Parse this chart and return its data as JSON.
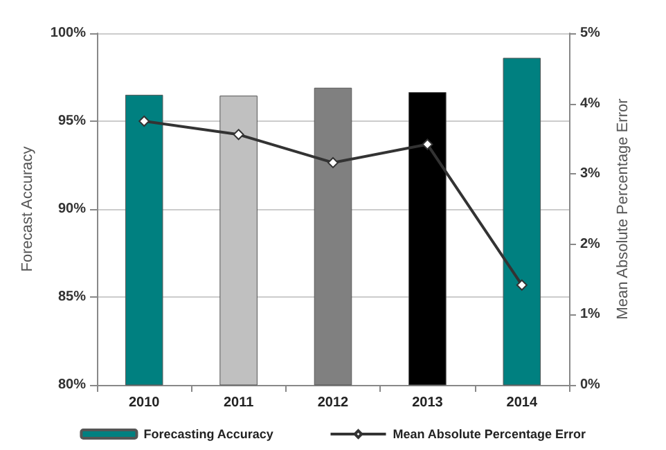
{
  "chart_data": {
    "type": "bar",
    "categories": [
      "2010",
      "2011",
      "2012",
      "2013",
      "2014"
    ],
    "ylabel": "Forecast Accuracy",
    "y2label": "Mean Absolute Percentage Error",
    "series": [
      {
        "name": "Forecasting Accuracy",
        "colors": [
          "#008080",
          "#c0c0c0",
          "#808080",
          "#000000",
          "#008080"
        ],
        "values": [
          96.5,
          96.45,
          96.9,
          96.65,
          98.6
        ]
      },
      {
        "name": "Mean Absolute Percentage Error",
        "type": "line",
        "axis": "y2",
        "color": "#333333",
        "marker": "diamond",
        "values": [
          3.75,
          3.56,
          3.16,
          3.42,
          1.42
        ]
      }
    ],
    "ylim": [
      80,
      100
    ],
    "yticks": [
      {
        "value": 80,
        "label": "80%"
      },
      {
        "value": 85,
        "label": "85%"
      },
      {
        "value": 90,
        "label": "90%"
      },
      {
        "value": 95,
        "label": "95%"
      },
      {
        "value": 100,
        "label": "100%"
      }
    ],
    "y2lim": [
      0,
      5
    ],
    "y2ticks": [
      {
        "value": 0,
        "label": "0%"
      },
      {
        "value": 1,
        "label": "1%"
      },
      {
        "value": 2,
        "label": "2%"
      },
      {
        "value": 3,
        "label": "3%"
      },
      {
        "value": 4,
        "label": "4%"
      },
      {
        "value": 5,
        "label": "5%"
      }
    ],
    "grid": "y",
    "legend": "bottom"
  }
}
